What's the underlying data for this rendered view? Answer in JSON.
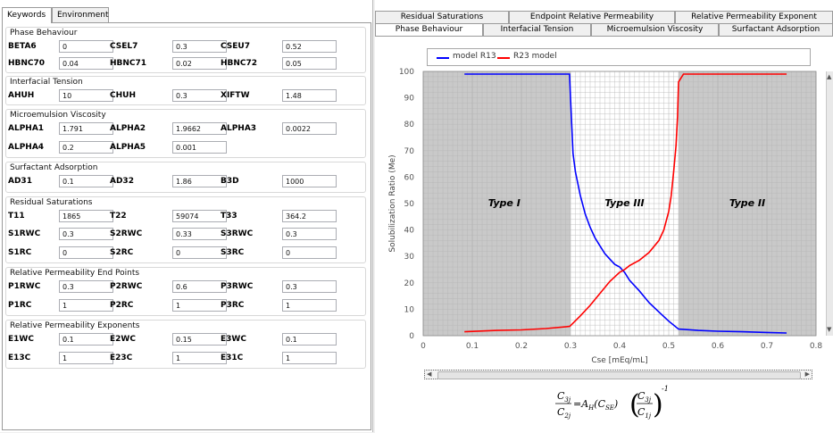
{
  "left_tabs": [
    {
      "label": "Keywords",
      "active": true
    },
    {
      "label": "Environment",
      "active": false
    }
  ],
  "sections": {
    "phase": {
      "title": "Phase Behaviour",
      "rows": [
        [
          {
            "label": "BETA6",
            "value": "0"
          },
          {
            "label": "CSEL7",
            "value": "0.3"
          },
          {
            "label": "CSEU7",
            "value": "0.52"
          }
        ],
        [
          {
            "label": "HBNC70",
            "value": "0.04"
          },
          {
            "label": "HBNC71",
            "value": "0.02"
          },
          {
            "label": "HBNC72",
            "value": "0.05"
          }
        ]
      ]
    },
    "ift": {
      "title": "Interfacial Tension",
      "rows": [
        [
          {
            "label": "AHUH",
            "value": "10"
          },
          {
            "label": "CHUH",
            "value": "0.3"
          },
          {
            "label": "XIFTW",
            "value": "1.48"
          }
        ]
      ]
    },
    "visc": {
      "title": "Microemulsion Viscosity",
      "rows": [
        [
          {
            "label": "ALPHA1",
            "value": "1.791"
          },
          {
            "label": "ALPHA2",
            "value": "1.9662"
          },
          {
            "label": "ALPHA3",
            "value": "0.0022"
          }
        ],
        [
          {
            "label": "ALPHA4",
            "value": "0.2"
          },
          {
            "label": "ALPHA5",
            "value": "0.001"
          }
        ]
      ]
    },
    "ads": {
      "title": "Surfactant Adsorption",
      "rows": [
        [
          {
            "label": "AD31",
            "value": "0.1"
          },
          {
            "label": "AD32",
            "value": "1.86"
          },
          {
            "label": "B3D",
            "value": "1000"
          }
        ]
      ]
    },
    "resid": {
      "title": "Residual Saturations",
      "rows": [
        [
          {
            "label": "T11",
            "value": "1865"
          },
          {
            "label": "T22",
            "value": "59074"
          },
          {
            "label": "T33",
            "value": "364.2"
          }
        ],
        [
          {
            "label": "S1RWC",
            "value": "0.3"
          },
          {
            "label": "S2RWC",
            "value": "0.33"
          },
          {
            "label": "S3RWC",
            "value": "0.3"
          }
        ],
        [
          {
            "label": "S1RC",
            "value": "0"
          },
          {
            "label": "S2RC",
            "value": "0"
          },
          {
            "label": "S3RC",
            "value": "0"
          }
        ]
      ]
    },
    "endpt": {
      "title": "Relative Permeability End Points",
      "rows": [
        [
          {
            "label": "P1RWC",
            "value": "0.3"
          },
          {
            "label": "P2RWC",
            "value": "0.6"
          },
          {
            "label": "P3RWC",
            "value": "0.3"
          }
        ],
        [
          {
            "label": "P1RC",
            "value": "1"
          },
          {
            "label": "P2RC",
            "value": "1"
          },
          {
            "label": "P3RC",
            "value": "1"
          }
        ]
      ]
    },
    "exp": {
      "title": "Relative Permeability Exponents",
      "rows": [
        [
          {
            "label": "E1WC",
            "value": "0.1"
          },
          {
            "label": "E2WC",
            "value": "0.15"
          },
          {
            "label": "E3WC",
            "value": "0.1"
          }
        ],
        [
          {
            "label": "E13C",
            "value": "1"
          },
          {
            "label": "E23C",
            "value": "1"
          },
          {
            "label": "E31C",
            "value": "1"
          }
        ]
      ]
    }
  },
  "right_tabs_row1": [
    "Residual Saturations",
    "Endpoint Relative Permeability",
    "Relative Permeability Exponent"
  ],
  "right_tabs_row2": [
    "Phase Behaviour",
    "Interfacial Tension",
    "Microemulsion Viscosity",
    "Surfactant Adsorption"
  ],
  "right_active_tab": "Phase Behaviour",
  "colors": {
    "blue": "#0000ff",
    "red": "#ff0000",
    "region_gray": "#c9c9c9"
  },
  "chart_data": {
    "type": "line",
    "title": "",
    "xlabel": "Cse [mEq/mL]",
    "ylabel": "Solubilization Ratio (Me)",
    "xlim": [
      0,
      0.8
    ],
    "ylim": [
      0,
      100
    ],
    "xticks": [
      0,
      0.1,
      0.2,
      0.3,
      0.4,
      0.5,
      0.6,
      0.7,
      0.8
    ],
    "yticks": [
      0,
      10,
      20,
      30,
      40,
      50,
      60,
      70,
      80,
      90,
      100
    ],
    "grid": true,
    "legend_position": "top",
    "regions": [
      {
        "label": "Type I",
        "x0": 0,
        "x1": 0.3,
        "shade": "gray"
      },
      {
        "label": "Type III",
        "x0": 0.3,
        "x1": 0.52,
        "shade": "white"
      },
      {
        "label": "Type II",
        "x0": 0.52,
        "x1": 0.8,
        "shade": "gray"
      }
    ],
    "series": [
      {
        "name": "model R13",
        "color": "#0000ff",
        "x": [
          0.084,
          0.298,
          0.3,
          0.305,
          0.31,
          0.32,
          0.33,
          0.34,
          0.35,
          0.36,
          0.37,
          0.38,
          0.39,
          0.4,
          0.41,
          0.42,
          0.44,
          0.46,
          0.48,
          0.5,
          0.52,
          0.56,
          0.6,
          0.65,
          0.7,
          0.74
        ],
        "y": [
          99,
          99,
          90,
          69,
          62,
          53,
          46,
          41,
          37,
          34,
          31,
          29,
          27,
          26,
          24,
          21,
          17,
          12.5,
          9,
          5.5,
          2.5,
          2,
          1.7,
          1.5,
          1.2,
          1
        ]
      },
      {
        "name": "R23 model",
        "color": "#ff0000",
        "x": [
          0.084,
          0.15,
          0.2,
          0.25,
          0.298,
          0.3,
          0.32,
          0.34,
          0.36,
          0.38,
          0.4,
          0.41,
          0.42,
          0.44,
          0.46,
          0.48,
          0.49,
          0.5,
          0.505,
          0.51,
          0.515,
          0.518,
          0.52,
          0.53,
          0.6,
          0.7,
          0.74
        ],
        "y": [
          1.5,
          2,
          2.2,
          2.7,
          3.5,
          3.8,
          7.5,
          11.5,
          16,
          20.5,
          24,
          25,
          26.5,
          28.5,
          31.5,
          36,
          40,
          47,
          53,
          62,
          72,
          83,
          96,
          99,
          99,
          99,
          99
        ]
      }
    ]
  },
  "formula": {
    "lhs_num": "C",
    "lhs_num_sub": "3j",
    "lhs_den": "C",
    "lhs_den_sub": "2j",
    "eq": "=A",
    "a_sub": "H",
    "arg": "(C",
    "arg_sub": "SE",
    "arg_close": ")",
    "rhs_num": "C",
    "rhs_num_sub": "3j",
    "rhs_den": "C",
    "rhs_den_sub": "1j",
    "exponent": "-1"
  }
}
